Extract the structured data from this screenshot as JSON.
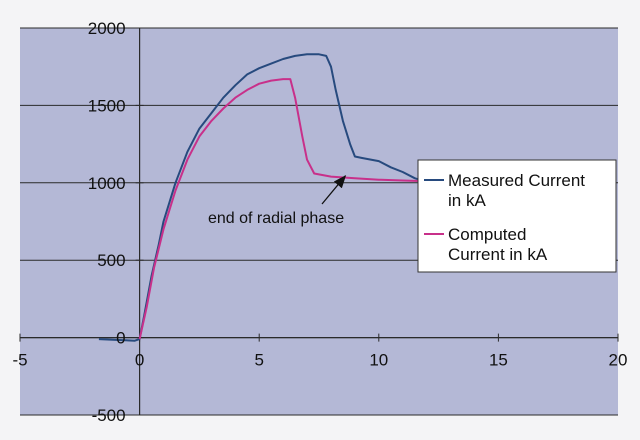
{
  "chart_data": {
    "type": "line",
    "title": "",
    "xlabel": "",
    "ylabel": "",
    "xlim": [
      -5,
      20
    ],
    "ylim": [
      -500,
      2000
    ],
    "x_ticks": [
      "-5",
      "0",
      "5",
      "10",
      "15",
      "20"
    ],
    "y_ticks": [
      "-500",
      "0",
      "500",
      "1000",
      "1500",
      "2000"
    ],
    "grid": {
      "horizontal": true,
      "vertical": false
    },
    "background_color": "#b4b8d6",
    "legend_position": "right",
    "series": [
      {
        "name_lines": [
          "Measured Current",
          "in kA"
        ],
        "color": "#274a7e",
        "points": [
          [
            -1.7,
            -10
          ],
          [
            -1,
            -15
          ],
          [
            -0.2,
            -20
          ],
          [
            0,
            -10
          ],
          [
            0.2,
            150
          ],
          [
            0.5,
            400
          ],
          [
            0.8,
            600
          ],
          [
            1,
            750
          ],
          [
            1.5,
            1000
          ],
          [
            2,
            1200
          ],
          [
            2.5,
            1350
          ],
          [
            3,
            1450
          ],
          [
            3.5,
            1550
          ],
          [
            4,
            1630
          ],
          [
            4.5,
            1700
          ],
          [
            5,
            1740
          ],
          [
            5.5,
            1770
          ],
          [
            6,
            1800
          ],
          [
            6.5,
            1820
          ],
          [
            7,
            1830
          ],
          [
            7.5,
            1830
          ],
          [
            7.8,
            1820
          ],
          [
            8,
            1750
          ],
          [
            8.2,
            1600
          ],
          [
            8.5,
            1400
          ],
          [
            8.8,
            1250
          ],
          [
            9,
            1170
          ],
          [
            9.3,
            1160
          ],
          [
            10,
            1140
          ],
          [
            10.5,
            1100
          ],
          [
            11,
            1070
          ],
          [
            11.5,
            1030
          ],
          [
            11.9,
            1010
          ]
        ]
      },
      {
        "name_lines": [
          "Computed",
          "Current in kA"
        ],
        "color": "#c8308a",
        "points": [
          [
            0,
            -10
          ],
          [
            0.3,
            200
          ],
          [
            0.6,
            450
          ],
          [
            1,
            700
          ],
          [
            1.5,
            950
          ],
          [
            2,
            1150
          ],
          [
            2.5,
            1300
          ],
          [
            3,
            1400
          ],
          [
            3.5,
            1480
          ],
          [
            4,
            1550
          ],
          [
            4.5,
            1600
          ],
          [
            5,
            1640
          ],
          [
            5.5,
            1660
          ],
          [
            6,
            1670
          ],
          [
            6.3,
            1670
          ],
          [
            6.5,
            1550
          ],
          [
            6.8,
            1300
          ],
          [
            7,
            1150
          ],
          [
            7.3,
            1060
          ],
          [
            8,
            1040
          ],
          [
            9,
            1030
          ],
          [
            10,
            1020
          ],
          [
            11,
            1015
          ],
          [
            12,
            1010
          ]
        ]
      }
    ],
    "annotations": [
      {
        "text": "end of radial phase",
        "arrow_to": [
          8.6,
          1070
        ]
      }
    ]
  }
}
